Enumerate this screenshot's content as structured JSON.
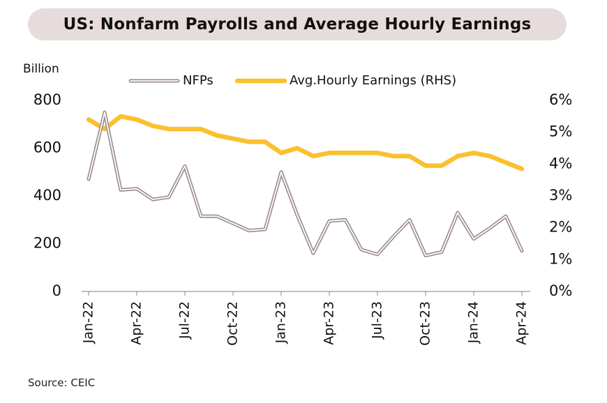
{
  "title": "US: Nonfarm Payrolls and Average Hourly Earnings",
  "source": "Source: CEIC",
  "colors": {
    "title_bg": "#e7dcdc",
    "nfp_stroke": "#9a8a8a",
    "nfp_fill": "#ffffff",
    "ahe": "#fbc02d",
    "axis": "#999999"
  },
  "chart_data": {
    "type": "line",
    "x_dates": [
      "Jan-22",
      "Feb-22",
      "Mar-22",
      "Apr-22",
      "May-22",
      "Jun-22",
      "Jul-22",
      "Aug-22",
      "Sep-22",
      "Oct-22",
      "Nov-22",
      "Dec-22",
      "Jan-23",
      "Feb-23",
      "Mar-23",
      "Apr-23",
      "May-23",
      "Jun-23",
      "Jul-23",
      "Aug-23",
      "Sep-23",
      "Oct-23",
      "Nov-23",
      "Dec-23",
      "Jan-24",
      "Feb-24",
      "Mar-24",
      "Apr-24"
    ],
    "x_tick_labels": [
      "Jan-22",
      "Apr-22",
      "Jul-22",
      "Oct-22",
      "Jan-23",
      "Apr-23",
      "Jul-23",
      "Oct-23",
      "Jan-24",
      "Apr-24"
    ],
    "x_tick_index": [
      0,
      3,
      6,
      9,
      12,
      15,
      18,
      21,
      24,
      27
    ],
    "left_axis": {
      "label": "Billion",
      "ylim": [
        0,
        800
      ],
      "ticks": [
        "0",
        "200",
        "400",
        "600",
        "800"
      ],
      "tick_values": [
        0,
        200,
        400,
        600,
        800
      ]
    },
    "right_axis": {
      "ylim": [
        0,
        6
      ],
      "ticks": [
        "0%",
        "1%",
        "2%",
        "3%",
        "4%",
        "5%",
        "6%"
      ],
      "tick_values": [
        0,
        1,
        2,
        3,
        4,
        5,
        6
      ]
    },
    "series": [
      {
        "name": "NFPs",
        "axis": "left",
        "values": [
          470,
          750,
          425,
          430,
          385,
          395,
          525,
          315,
          315,
          285,
          255,
          260,
          500,
          320,
          160,
          295,
          300,
          175,
          155,
          230,
          300,
          150,
          165,
          330,
          220,
          265,
          315,
          170
        ]
      },
      {
        "name": "Avg.Hourly Earnings (RHS)",
        "axis": "right",
        "values": [
          5.4,
          5.1,
          5.5,
          5.4,
          5.2,
          5.1,
          5.1,
          5.1,
          4.9,
          4.8,
          4.7,
          4.7,
          4.35,
          4.5,
          4.25,
          4.35,
          4.35,
          4.35,
          4.35,
          4.25,
          4.25,
          3.95,
          3.95,
          4.25,
          4.35,
          4.25,
          4.05,
          3.85
        ]
      }
    ]
  }
}
